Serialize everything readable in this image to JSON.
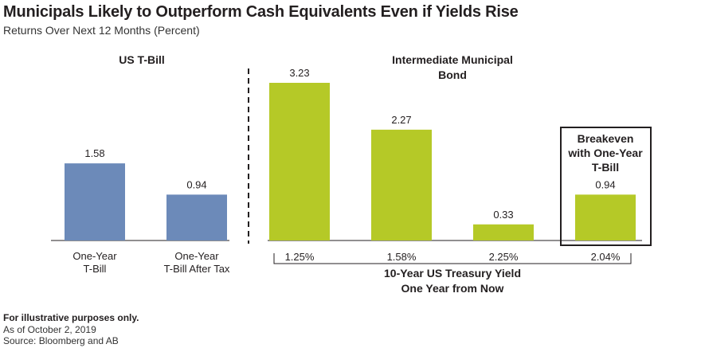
{
  "header": {
    "title": "Municipals Likely to Outperform Cash Equivalents Even if Yields Rise",
    "subtitle": "Returns Over Next 12 Months (Percent)"
  },
  "colors": {
    "tbill": "#6c8ab9",
    "muni": "#b5c927",
    "axis": "#231f20",
    "box": "#231f20"
  },
  "chart_data": {
    "type": "bar",
    "title": "Municipals Likely to Outperform Cash Equivalents Even if Yields Rise",
    "subtitle": "Returns Over Next 12 Months (Percent)",
    "ylim": [
      0,
      3.4
    ],
    "grid": false,
    "groups": [
      {
        "label": "US T-Bill",
        "color": "tbill",
        "bars": [
          {
            "category": [
              "One-Year",
              "T-Bill"
            ],
            "value": 1.58,
            "value_label": "1.58"
          },
          {
            "category": [
              "One-Year",
              "T-Bill After Tax"
            ],
            "value": 0.94,
            "value_label": "0.94"
          }
        ]
      },
      {
        "label": [
          "Intermediate Municipal",
          "Bond"
        ],
        "color": "muni",
        "axis_title": [
          "10-Year US Treasury Yield",
          "One Year from Now"
        ],
        "bars": [
          {
            "category": [
              "1.25%"
            ],
            "value": 3.23,
            "value_label": "3.23"
          },
          {
            "category": [
              "1.58%"
            ],
            "value": 2.27,
            "value_label": "2.27"
          },
          {
            "category": [
              "2.25%"
            ],
            "value": 0.33,
            "value_label": "0.33"
          },
          {
            "category": [
              "2.04%"
            ],
            "value": 0.94,
            "value_label": "0.94",
            "highlight": [
              "Breakeven",
              "with One-Year",
              "T-Bill"
            ]
          }
        ]
      }
    ]
  },
  "footer": {
    "note": "For illustrative purposes only.",
    "date": "As of October 2, 2019",
    "source": "Source: Bloomberg and AB"
  }
}
